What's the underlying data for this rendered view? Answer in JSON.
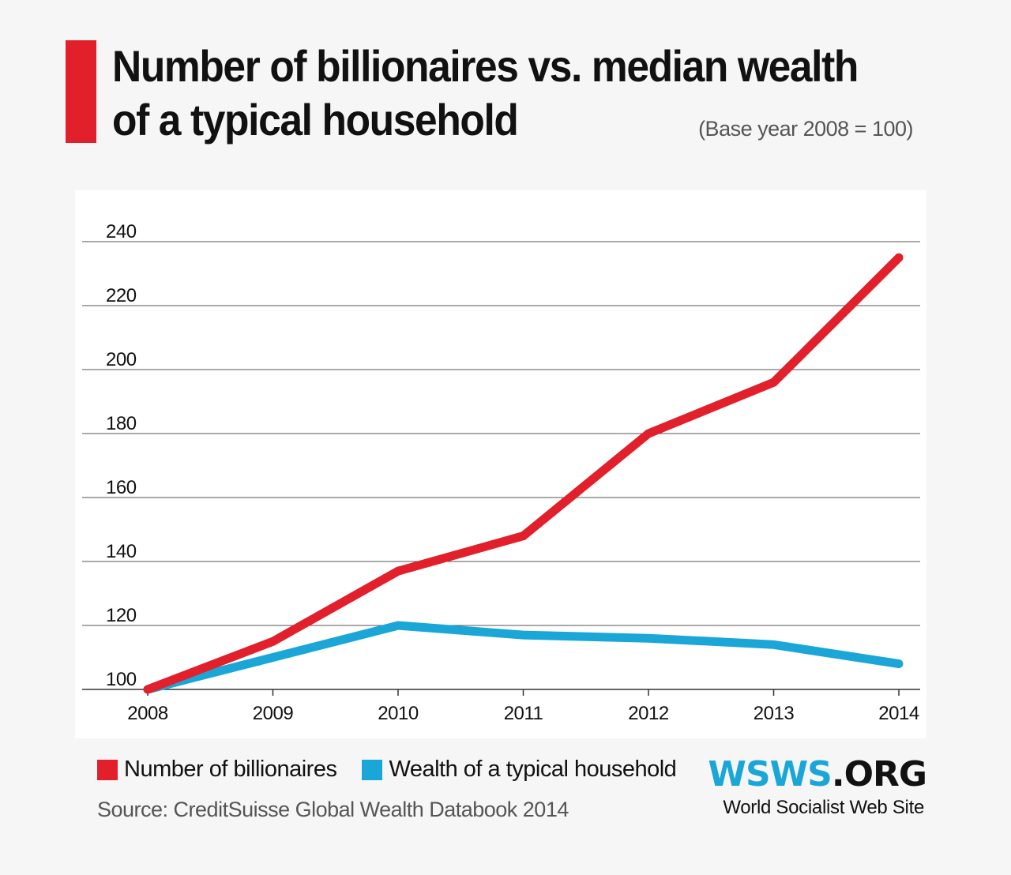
{
  "header": {
    "title_line1": "Number of billionaires vs. median wealth",
    "title_line2": "of a typical household",
    "subtitle": "(Base year 2008 = 100)"
  },
  "chart_data": {
    "type": "line",
    "title": "Number of billionaires vs. median wealth of a typical household",
    "subtitle": "(Base year 2008 = 100)",
    "categories": [
      "2008",
      "2009",
      "2010",
      "2011",
      "2012",
      "2013",
      "2014"
    ],
    "ylim": [
      100,
      240
    ],
    "yticks": [
      100,
      120,
      140,
      160,
      180,
      200,
      220,
      240
    ],
    "grid": true,
    "series": [
      {
        "name": "Number of billionaires",
        "color": "#e1202b",
        "values": [
          100,
          115,
          137,
          148,
          180,
          196,
          235
        ]
      },
      {
        "name": "Wealth of a typical household",
        "color": "#1aa6d6",
        "values": [
          100,
          110,
          120,
          117,
          116,
          114,
          108
        ]
      }
    ],
    "legend_position": "bottom-left"
  },
  "legend": {
    "items": [
      {
        "label": "Number of billionaires",
        "color": "#e1202b"
      },
      {
        "label": "Wealth of a typical household",
        "color": "#1aa6d6"
      }
    ]
  },
  "footer": {
    "source": "Source: CreditSuisse Global Wealth Databook 2014",
    "logo_part1": "WSWS",
    "logo_part2": ".ORG",
    "logo_subtitle": "World Socialist Web Site"
  },
  "colors": {
    "accent_red": "#e1202b",
    "accent_blue": "#1aa6d6",
    "background": "#f7f6f7",
    "panel": "#ffffff"
  }
}
